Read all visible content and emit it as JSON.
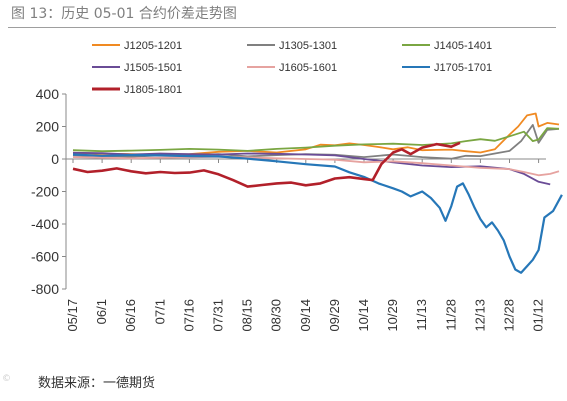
{
  "figure": {
    "title": "图 13：历史 05-01 合约价差走势图",
    "source": "数据来源：一德期货",
    "watermark": "©",
    "colors": {
      "text": "#7f7f7f",
      "axis": "#333333",
      "rule": "#9e9e9e"
    }
  },
  "chart_data": {
    "type": "line",
    "title": "",
    "xlabel": "",
    "ylabel": "",
    "ylim": [
      -800,
      400
    ],
    "yticks": [
      400,
      200,
      0,
      -200,
      -400,
      -600,
      -800
    ],
    "grid": false,
    "legend_position": "top",
    "x_ticks": [
      "05/17",
      "06/1",
      "06/16",
      "07/1",
      "07/16",
      "07/31",
      "08/15",
      "08/30",
      "09/14",
      "09/29",
      "10/14",
      "10/29",
      "11/13",
      "11/28",
      "12/13",
      "12/28",
      "01/12"
    ],
    "series": [
      {
        "name": "J1205-1201",
        "color": "#f08a22",
        "points": [
          [
            0,
            38
          ],
          [
            1,
            32
          ],
          [
            2,
            30
          ],
          [
            3,
            26
          ],
          [
            4,
            30
          ],
          [
            5,
            44
          ],
          [
            6,
            50
          ],
          [
            7,
            40
          ],
          [
            8,
            60
          ],
          [
            8.5,
            88
          ],
          [
            9,
            84
          ],
          [
            9.5,
            96
          ],
          [
            10,
            86
          ],
          [
            10.5,
            74
          ],
          [
            11,
            60
          ],
          [
            11.5,
            72
          ],
          [
            12,
            54
          ],
          [
            12.5,
            56
          ],
          [
            13,
            58
          ],
          [
            13.5,
            48
          ],
          [
            14,
            40
          ],
          [
            14.5,
            60
          ],
          [
            15,
            150
          ],
          [
            15.3,
            200
          ],
          [
            15.6,
            268
          ],
          [
            15.9,
            280
          ],
          [
            16,
            200
          ],
          [
            16.3,
            222
          ],
          [
            16.7,
            212
          ]
        ]
      },
      {
        "name": "J1305-1301",
        "color": "#808080",
        "points": [
          [
            0,
            22
          ],
          [
            1,
            18
          ],
          [
            2,
            14
          ],
          [
            3,
            22
          ],
          [
            4,
            24
          ],
          [
            5,
            30
          ],
          [
            6,
            16
          ],
          [
            7,
            24
          ],
          [
            8,
            30
          ],
          [
            9,
            26
          ],
          [
            10,
            12
          ],
          [
            11,
            28
          ],
          [
            12,
            12
          ],
          [
            13,
            2
          ],
          [
            13.5,
            20
          ],
          [
            14,
            18
          ],
          [
            14.5,
            34
          ],
          [
            15,
            50
          ],
          [
            15.4,
            110
          ],
          [
            15.8,
            210
          ],
          [
            16,
            100
          ],
          [
            16.3,
            180
          ],
          [
            16.7,
            186
          ]
        ]
      },
      {
        "name": "J1405-1401",
        "color": "#7aa642",
        "points": [
          [
            0,
            54
          ],
          [
            1,
            48
          ],
          [
            2,
            52
          ],
          [
            3,
            56
          ],
          [
            4,
            62
          ],
          [
            5,
            58
          ],
          [
            6,
            50
          ],
          [
            7,
            62
          ],
          [
            8,
            70
          ],
          [
            9,
            82
          ],
          [
            10,
            90
          ],
          [
            11,
            94
          ],
          [
            12,
            86
          ],
          [
            13,
            96
          ],
          [
            13.5,
            110
          ],
          [
            14,
            122
          ],
          [
            14.5,
            112
          ],
          [
            15,
            140
          ],
          [
            15.5,
            168
          ],
          [
            15.8,
            110
          ],
          [
            16,
            120
          ],
          [
            16.3,
            190
          ],
          [
            16.7,
            186
          ]
        ]
      },
      {
        "name": "J1505-1501",
        "color": "#6a4c96",
        "points": [
          [
            0,
            38
          ],
          [
            1,
            36
          ],
          [
            2,
            28
          ],
          [
            3,
            34
          ],
          [
            4,
            30
          ],
          [
            5,
            28
          ],
          [
            6,
            34
          ],
          [
            7,
            32
          ],
          [
            8,
            28
          ],
          [
            9,
            22
          ],
          [
            10,
            0
          ],
          [
            11,
            -20
          ],
          [
            12,
            -40
          ],
          [
            13,
            -50
          ],
          [
            14,
            -45
          ],
          [
            15,
            -62
          ],
          [
            15.5,
            -92
          ],
          [
            16,
            -140
          ],
          [
            16.4,
            -156
          ]
        ]
      },
      {
        "name": "J1605-1601",
        "color": "#e6a3a0",
        "points": [
          [
            0,
            12
          ],
          [
            1,
            8
          ],
          [
            2,
            4
          ],
          [
            3,
            8
          ],
          [
            4,
            10
          ],
          [
            5,
            14
          ],
          [
            6,
            10
          ],
          [
            7,
            4
          ],
          [
            8,
            0
          ],
          [
            9,
            -4
          ],
          [
            10,
            -20
          ],
          [
            11,
            -14
          ],
          [
            12,
            -26
          ],
          [
            13,
            -40
          ],
          [
            14,
            -55
          ],
          [
            15,
            -62
          ],
          [
            15.5,
            -80
          ],
          [
            16,
            -100
          ],
          [
            16.4,
            -92
          ],
          [
            16.7,
            -76
          ]
        ]
      },
      {
        "name": "J1705-1701",
        "color": "#2677b8",
        "points": [
          [
            0,
            28
          ],
          [
            1,
            20
          ],
          [
            2,
            24
          ],
          [
            3,
            22
          ],
          [
            4,
            18
          ],
          [
            5,
            16
          ],
          [
            6,
            2
          ],
          [
            7,
            -14
          ],
          [
            8,
            -32
          ],
          [
            9,
            -46
          ],
          [
            9.5,
            -82
          ],
          [
            10,
            -110
          ],
          [
            10.5,
            -150
          ],
          [
            11,
            -180
          ],
          [
            11.3,
            -200
          ],
          [
            11.6,
            -230
          ],
          [
            12,
            -200
          ],
          [
            12.3,
            -240
          ],
          [
            12.6,
            -300
          ],
          [
            12.8,
            -380
          ],
          [
            13,
            -290
          ],
          [
            13.2,
            -170
          ],
          [
            13.4,
            -150
          ],
          [
            13.6,
            -220
          ],
          [
            13.8,
            -300
          ],
          [
            14,
            -370
          ],
          [
            14.2,
            -420
          ],
          [
            14.4,
            -390
          ],
          [
            14.6,
            -440
          ],
          [
            14.8,
            -500
          ],
          [
            15,
            -600
          ],
          [
            15.2,
            -680
          ],
          [
            15.4,
            -700
          ],
          [
            15.6,
            -660
          ],
          [
            15.8,
            -620
          ],
          [
            16,
            -560
          ],
          [
            16.2,
            -360
          ],
          [
            16.5,
            -320
          ],
          [
            16.8,
            -220
          ]
        ]
      },
      {
        "name": "J1805-1801",
        "color": "#b2202a",
        "points": [
          [
            0,
            -60
          ],
          [
            0.5,
            -80
          ],
          [
            1,
            -72
          ],
          [
            1.5,
            -58
          ],
          [
            2,
            -76
          ],
          [
            2.5,
            -88
          ],
          [
            3,
            -80
          ],
          [
            3.5,
            -86
          ],
          [
            4,
            -84
          ],
          [
            4.5,
            -70
          ],
          [
            5,
            -94
          ],
          [
            5.5,
            -130
          ],
          [
            6,
            -170
          ],
          [
            6.5,
            -160
          ],
          [
            7,
            -150
          ],
          [
            7.5,
            -145
          ],
          [
            8,
            -162
          ],
          [
            8.5,
            -150
          ],
          [
            9,
            -120
          ],
          [
            9.5,
            -112
          ],
          [
            10,
            -124
          ],
          [
            10.3,
            -130
          ],
          [
            10.6,
            -30
          ],
          [
            11,
            40
          ],
          [
            11.3,
            60
          ],
          [
            11.6,
            30
          ],
          [
            12,
            70
          ],
          [
            12.5,
            92
          ],
          [
            13,
            76
          ],
          [
            13.3,
            100
          ]
        ]
      }
    ]
  }
}
